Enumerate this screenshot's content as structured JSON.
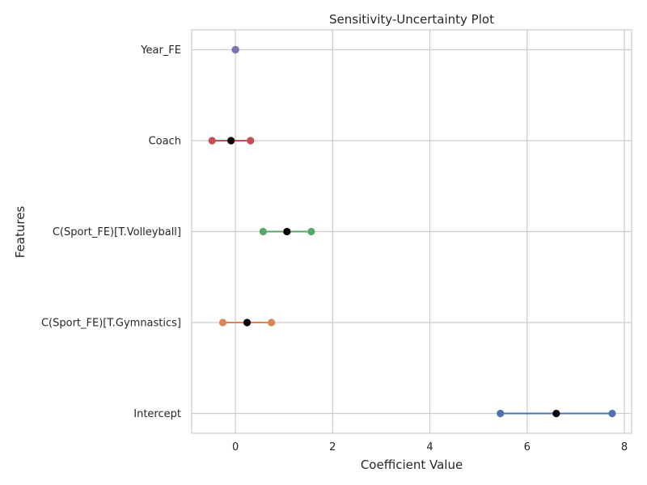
{
  "chart_data": {
    "type": "errorbar",
    "title": "Sensitivity-Uncertainty Plot",
    "xlabel": "Coefficient Value",
    "ylabel": "Features",
    "xlim": [
      -0.9,
      8.15
    ],
    "xticks": [
      0,
      2,
      4,
      6,
      8
    ],
    "grid": true,
    "features": [
      {
        "name": "Year_FE",
        "estimate": 0.0,
        "lower": 0.0,
        "upper": 0.0,
        "color": "#8172b3"
      },
      {
        "name": "Coach",
        "estimate": -0.09,
        "lower": -0.48,
        "upper": 0.31,
        "color": "#c44e52"
      },
      {
        "name": "C(Sport_FE)[T.Volleyball]",
        "estimate": 1.06,
        "lower": 0.57,
        "upper": 1.56,
        "color": "#55a868"
      },
      {
        "name": "C(Sport_FE)[T.Gymnastics]",
        "estimate": 0.24,
        "lower": -0.26,
        "upper": 0.74,
        "color": "#dd8452"
      },
      {
        "name": "Intercept",
        "estimate": 6.6,
        "lower": 5.45,
        "upper": 7.75,
        "color": "#4c72b0"
      }
    ],
    "estimate_color": "#000000"
  }
}
